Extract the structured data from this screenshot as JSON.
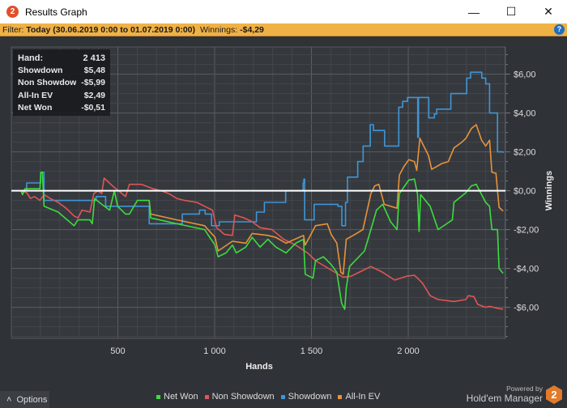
{
  "window": {
    "title": "Results Graph",
    "minimize": "—",
    "maximize": "☐",
    "close": "✕"
  },
  "filter": {
    "label": "Filter:",
    "value": "Today (30.06.2019 0:00 to 01.07.2019 0:00)",
    "winnings_label": "Winnings:",
    "winnings_value": "-$4,29",
    "help": "?"
  },
  "tooltip": [
    {
      "label": "Hand:",
      "value": "2 413"
    },
    {
      "label": "Showdown",
      "value": "$5,48"
    },
    {
      "label": "Non Showdown",
      "value": "-$5,99"
    },
    {
      "label": "All-In EV",
      "value": "$2,49"
    },
    {
      "label": "Net Won",
      "value": "-$0,51"
    }
  ],
  "options_label": "Options",
  "powered": {
    "line1": "Powered by",
    "line2": "Hold'em Manager",
    "logo": "2"
  },
  "chart_data": {
    "type": "line",
    "xlabel": "Hands",
    "ylabel": "Winnings",
    "xlim": [
      -50,
      2502
    ],
    "ylim": [
      -7.6,
      7.4
    ],
    "x_ticks": [
      {
        "v": 500,
        "label": "500"
      },
      {
        "v": 1000,
        "label": "1 000"
      },
      {
        "v": 1500,
        "label": "1 500"
      },
      {
        "v": 2000,
        "label": "2 000"
      }
    ],
    "y_ticks": [
      {
        "v": 6,
        "label": "$6,00"
      },
      {
        "v": 4,
        "label": "$4,00"
      },
      {
        "v": 2,
        "label": "$2,00"
      },
      {
        "v": 0,
        "label": "$0,00"
      },
      {
        "v": -2,
        "label": "-$2,00"
      },
      {
        "v": -4,
        "label": "-$4,00"
      },
      {
        "v": -6,
        "label": "-$6,00"
      }
    ],
    "grid": true,
    "zero_line": true,
    "legend_position": "bottom",
    "series": [
      {
        "name": "Net Won",
        "color": "#3ddc3d",
        "points": [
          [
            0,
            0
          ],
          [
            8,
            -0.2
          ],
          [
            20,
            0.1
          ],
          [
            98,
            0.1
          ],
          [
            102,
            0.95
          ],
          [
            110,
            0.95
          ],
          [
            119,
            -0.8
          ],
          [
            192,
            -1.1
          ],
          [
            274,
            -1.8
          ],
          [
            294,
            -1.5
          ],
          [
            356,
            -1.5
          ],
          [
            368,
            -1.7
          ],
          [
            380,
            -0.4
          ],
          [
            417,
            -0.7
          ],
          [
            458,
            -1.0
          ],
          [
            482,
            0
          ],
          [
            499,
            -0.8
          ],
          [
            540,
            -1.2
          ],
          [
            560,
            -1.2
          ],
          [
            601,
            -0.5
          ],
          [
            662,
            -0.5
          ],
          [
            670,
            -1.4
          ],
          [
            805,
            -1.7
          ],
          [
            948,
            -2.0
          ],
          [
            1002,
            -2.8
          ],
          [
            1018,
            -3.4
          ],
          [
            1059,
            -3.2
          ],
          [
            1092,
            -2.8
          ],
          [
            1112,
            -3.2
          ],
          [
            1161,
            -2.9
          ],
          [
            1194,
            -2.4
          ],
          [
            1235,
            -2.9
          ],
          [
            1275,
            -2.5
          ],
          [
            1316,
            -2.9
          ],
          [
            1369,
            -3.2
          ],
          [
            1419,
            -2.7
          ],
          [
            1459,
            -2.5
          ],
          [
            1468,
            -4.3
          ],
          [
            1508,
            -4.5
          ],
          [
            1521,
            -3.6
          ],
          [
            1562,
            -3.4
          ],
          [
            1602,
            -3.8
          ],
          [
            1631,
            -4.2
          ],
          [
            1656,
            -5.8
          ],
          [
            1672,
            -6.1
          ],
          [
            1680,
            -5.0
          ],
          [
            1697,
            -3.9
          ],
          [
            1774,
            -3.1
          ],
          [
            1807,
            -2.0
          ],
          [
            1836,
            -1.0
          ],
          [
            1868,
            -0.7
          ],
          [
            1909,
            -1.6
          ],
          [
            1942,
            -2.0
          ],
          [
            1954,
            -0.15
          ],
          [
            2003,
            0.55
          ],
          [
            2032,
            0.6
          ],
          [
            2048,
            -0.2
          ],
          [
            2056,
            -2.1
          ],
          [
            2064,
            -0.2
          ],
          [
            2113,
            -0.8
          ],
          [
            2154,
            -2.0
          ],
          [
            2228,
            -1.5
          ],
          [
            2236,
            -0.6
          ],
          [
            2298,
            -0.1
          ],
          [
            2326,
            0.25
          ],
          [
            2351,
            0.33
          ],
          [
            2400,
            -0.6
          ],
          [
            2420,
            -0.8
          ],
          [
            2432,
            -2.0
          ],
          [
            2461,
            -2.0
          ],
          [
            2469,
            -4.0
          ],
          [
            2490,
            -4.25
          ]
        ]
      },
      {
        "name": "Non Showdown",
        "color": "#e05555",
        "points": [
          [
            0,
            0
          ],
          [
            29,
            -0.1
          ],
          [
            49,
            -0.4
          ],
          [
            69,
            -0.3
          ],
          [
            98,
            -0.5
          ],
          [
            119,
            -0.2
          ],
          [
            151,
            -0.4
          ],
          [
            192,
            -0.6
          ],
          [
            233,
            -0.9
          ],
          [
            274,
            -1.3
          ],
          [
            294,
            -1.4
          ],
          [
            315,
            -1.0
          ],
          [
            356,
            -1.1
          ],
          [
            376,
            -0.15
          ],
          [
            397,
            0
          ],
          [
            417,
            -0.15
          ],
          [
            429,
            0.65
          ],
          [
            478,
            0.2
          ],
          [
            540,
            -0.3
          ],
          [
            560,
            0.33
          ],
          [
            621,
            0.33
          ],
          [
            683,
            0.1
          ],
          [
            724,
            0
          ],
          [
            764,
            -0.15
          ],
          [
            805,
            -0.4
          ],
          [
            846,
            -0.5
          ],
          [
            908,
            -0.6
          ],
          [
            948,
            -0.8
          ],
          [
            989,
            -1.0
          ],
          [
            1010,
            -1.9
          ],
          [
            1051,
            -2.25
          ],
          [
            1092,
            -2.3
          ],
          [
            1104,
            -1.25
          ],
          [
            1153,
            -1.4
          ],
          [
            1194,
            -1.6
          ],
          [
            1235,
            -1.9
          ],
          [
            1296,
            -2.0
          ],
          [
            1357,
            -2.5
          ],
          [
            1419,
            -2.8
          ],
          [
            1480,
            -3.2
          ],
          [
            1521,
            -3.6
          ],
          [
            1664,
            -4.45
          ],
          [
            1705,
            -4.4
          ],
          [
            1746,
            -4.2
          ],
          [
            1807,
            -3.9
          ],
          [
            1868,
            -4.2
          ],
          [
            1930,
            -4.6
          ],
          [
            1991,
            -4.4
          ],
          [
            2032,
            -4.35
          ],
          [
            2073,
            -4.75
          ],
          [
            2113,
            -5.4
          ],
          [
            2154,
            -5.6
          ],
          [
            2236,
            -5.7
          ],
          [
            2298,
            -5.6
          ],
          [
            2310,
            -5.4
          ],
          [
            2339,
            -5.45
          ],
          [
            2359,
            -5.85
          ],
          [
            2400,
            -6.0
          ],
          [
            2420,
            -5.95
          ],
          [
            2461,
            -6.05
          ],
          [
            2490,
            -6.1
          ]
        ]
      },
      {
        "name": "Showdown",
        "color": "#3f95d6",
        "step": true,
        "points": [
          [
            0,
            0
          ],
          [
            29,
            0.4
          ],
          [
            98,
            0.4
          ],
          [
            102,
            0.95
          ],
          [
            110,
            0.95
          ],
          [
            119,
            -0.5
          ],
          [
            384,
            -0.5
          ],
          [
            388,
            -0.3
          ],
          [
            420,
            -0.3
          ],
          [
            437,
            -0.8
          ],
          [
            658,
            -0.8
          ],
          [
            662,
            -1.7
          ],
          [
            800,
            -1.7
          ],
          [
            833,
            -1.2
          ],
          [
            922,
            -1.0
          ],
          [
            951,
            -1.2
          ],
          [
            984,
            -1.8
          ],
          [
            1024,
            -1.6
          ],
          [
            1216,
            -1.1
          ],
          [
            1257,
            -0.6
          ],
          [
            1363,
            -0.6
          ],
          [
            1367,
            0
          ],
          [
            1441,
            0
          ],
          [
            1457,
            0.4
          ],
          [
            1461,
            0.6
          ],
          [
            1465,
            -1.5
          ],
          [
            1502,
            -1.5
          ],
          [
            1514,
            -0.7
          ],
          [
            1637,
            -0.8
          ],
          [
            1657,
            -1.8
          ],
          [
            1673,
            -1.8
          ],
          [
            1676,
            -0.6
          ],
          [
            1686,
            0.7
          ],
          [
            1739,
            1.5
          ],
          [
            1767,
            2.3
          ],
          [
            1804,
            3.4
          ],
          [
            1820,
            3.1
          ],
          [
            1878,
            2.3
          ],
          [
            1951,
            4.3
          ],
          [
            1971,
            4.6
          ],
          [
            1996,
            4.8
          ],
          [
            2045,
            4.8
          ],
          [
            2049,
            2.75
          ],
          [
            2053,
            4.8
          ],
          [
            2106,
            3.75
          ],
          [
            2135,
            3.95
          ],
          [
            2147,
            4.2
          ],
          [
            2220,
            5.0
          ],
          [
            2302,
            5.8
          ],
          [
            2322,
            6.1
          ],
          [
            2380,
            5.8
          ],
          [
            2400,
            5.5
          ],
          [
            2420,
            4.0
          ],
          [
            2461,
            2.0
          ],
          [
            2490,
            1.95
          ]
        ]
      },
      {
        "name": "All-In EV",
        "color": "#e8923a",
        "points": [
          [
            662,
            -0.5
          ],
          [
            670,
            -1.2
          ],
          [
            805,
            -1.5
          ],
          [
            948,
            -1.8
          ],
          [
            1002,
            -2.4
          ],
          [
            1018,
            -3.1
          ],
          [
            1092,
            -2.6
          ],
          [
            1161,
            -2.7
          ],
          [
            1194,
            -2.2
          ],
          [
            1275,
            -2.3
          ],
          [
            1316,
            -2.4
          ],
          [
            1369,
            -2.7
          ],
          [
            1459,
            -2.3
          ],
          [
            1468,
            -2.8
          ],
          [
            1521,
            -1.8
          ],
          [
            1582,
            -1.7
          ],
          [
            1602,
            -2.25
          ],
          [
            1631,
            -2.7
          ],
          [
            1652,
            -4.2
          ],
          [
            1664,
            -4.3
          ],
          [
            1680,
            -2.5
          ],
          [
            1725,
            -2.25
          ],
          [
            1766,
            -2.0
          ],
          [
            1807,
            -0.15
          ],
          [
            1827,
            0.25
          ],
          [
            1848,
            0.33
          ],
          [
            1876,
            -0.7
          ],
          [
            1942,
            -0.9
          ],
          [
            1954,
            0.8
          ],
          [
            1978,
            1.25
          ],
          [
            2003,
            1.6
          ],
          [
            2032,
            1.5
          ],
          [
            2044,
            1.05
          ],
          [
            2060,
            2.7
          ],
          [
            2080,
            2.3
          ],
          [
            2105,
            1.8
          ],
          [
            2121,
            1.1
          ],
          [
            2174,
            1.4
          ],
          [
            2207,
            1.5
          ],
          [
            2236,
            2.2
          ],
          [
            2277,
            2.5
          ],
          [
            2298,
            2.7
          ],
          [
            2326,
            3.2
          ],
          [
            2351,
            3.4
          ],
          [
            2379,
            2.6
          ],
          [
            2400,
            2.3
          ],
          [
            2420,
            2.6
          ],
          [
            2432,
            0.95
          ],
          [
            2453,
            0.9
          ],
          [
            2469,
            -0.85
          ],
          [
            2490,
            -1.05
          ]
        ]
      }
    ]
  }
}
